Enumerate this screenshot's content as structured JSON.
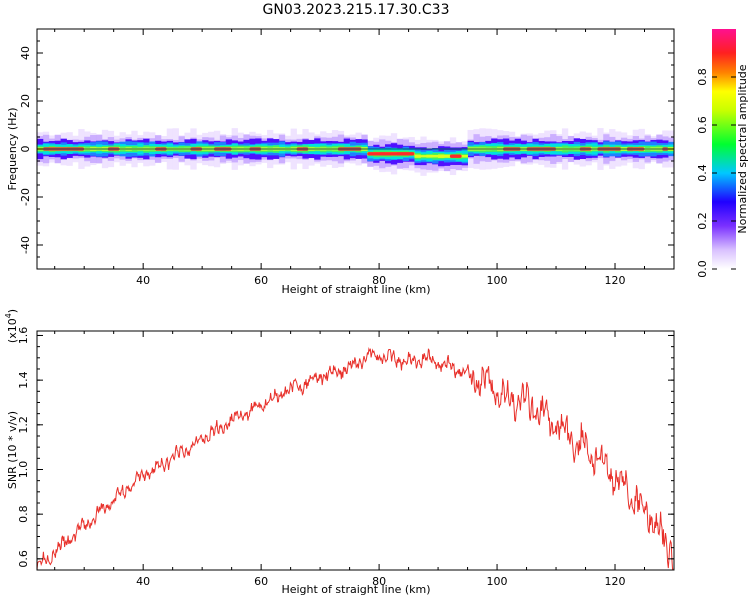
{
  "title": "GN03.2023.215.17.30.C33",
  "chart_data": [
    {
      "type": "heatmap",
      "xlabel": "Height of straight line (km)",
      "ylabel": "Frequency (Hz)",
      "xlim": [
        22,
        130
      ],
      "ylim": [
        -50,
        50
      ],
      "xticks": [
        40,
        60,
        80,
        100,
        120
      ],
      "yticks": [
        40,
        20,
        0,
        -20,
        -40
      ],
      "colorbar": {
        "label": "Normalized spectral amplitude",
        "range": [
          0,
          1
        ],
        "ticks": [
          "0.0",
          "0.2",
          "0.4",
          "0.6",
          "0.8"
        ],
        "colors": [
          "#ffffff",
          "#b07cff",
          "#4000ff",
          "#00d8ff",
          "#00ff40",
          "#ffff00",
          "#ff3020",
          "#ff1080"
        ]
      },
      "band": {
        "center_hz": 0,
        "core_halfwidth_hz": 1.5,
        "outer_halfwidth_hz": 5,
        "dips": [
          {
            "x_km": [
              78,
              86
            ],
            "center_hz": -2
          },
          {
            "x_km": [
              86,
              94
            ],
            "center_hz": -3
          }
        ]
      }
    },
    {
      "type": "line",
      "xlabel": "Height of straight line (km)",
      "ylabel": "SNR (10 * v/v)",
      "scale_label": "(x10",
      "scale_exp": "4",
      "scale_close": ")",
      "xlim": [
        22,
        130
      ],
      "ylim": [
        0.55,
        1.62
      ],
      "xticks": [
        40,
        60,
        80,
        100,
        120
      ],
      "yticks": [
        {
          "value": 1.6,
          "label": "1.6"
        },
        {
          "value": 1.4,
          "label": "1.4"
        },
        {
          "value": 1.2,
          "label": "1.2"
        },
        {
          "value": 1.0,
          "label": "1.0"
        },
        {
          "value": 0.8,
          "label": "0.8"
        },
        {
          "value": 0.6,
          "label": "0.6"
        }
      ],
      "series_color": "#e8302a",
      "x": [
        22,
        25,
        28,
        31,
        34,
        37,
        40,
        43,
        46,
        49,
        52,
        55,
        58,
        61,
        64,
        67,
        70,
        73,
        76,
        79,
        82,
        85,
        88,
        91,
        94,
        97,
        100,
        103,
        106,
        109,
        112,
        115,
        118,
        121,
        124,
        127,
        130
      ],
      "values": [
        0.57,
        0.63,
        0.7,
        0.77,
        0.84,
        0.91,
        0.97,
        1.02,
        1.07,
        1.12,
        1.17,
        1.22,
        1.26,
        1.3,
        1.35,
        1.38,
        1.42,
        1.44,
        1.47,
        1.52,
        1.5,
        1.48,
        1.5,
        1.47,
        1.44,
        1.4,
        1.35,
        1.32,
        1.29,
        1.22,
        1.15,
        1.1,
        1.02,
        0.95,
        0.85,
        0.75,
        0.62
      ]
    }
  ]
}
